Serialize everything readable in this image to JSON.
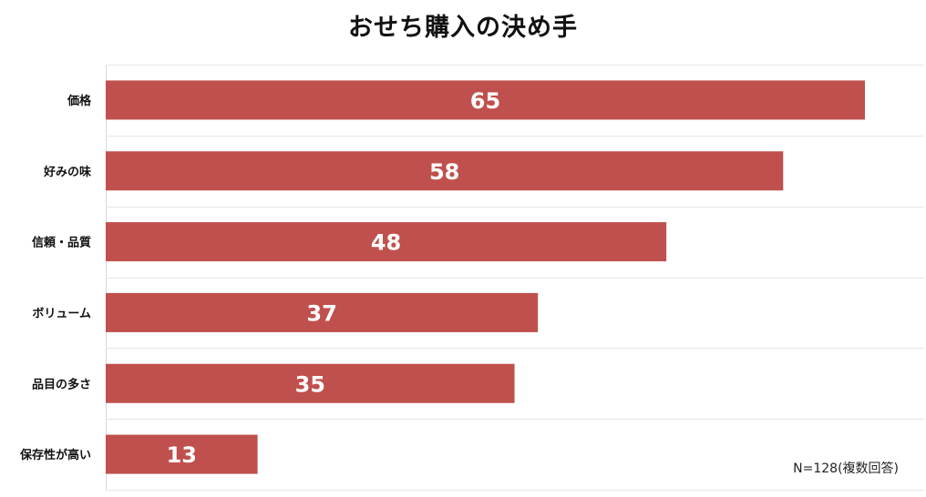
{
  "chart_data": {
    "type": "bar",
    "orientation": "horizontal",
    "title": "おせち購入の決め手",
    "categories": [
      "価格",
      "好みの味",
      "信頼・品質",
      "ボリューム",
      "品目の多さ",
      "保存性が高い"
    ],
    "values": [
      65,
      58,
      48,
      37,
      35,
      13
    ],
    "xlim": [
      0,
      70
    ],
    "bar_color": "#c0504d",
    "grid": true,
    "legend": "none",
    "note": "N=128(複数回答)"
  }
}
